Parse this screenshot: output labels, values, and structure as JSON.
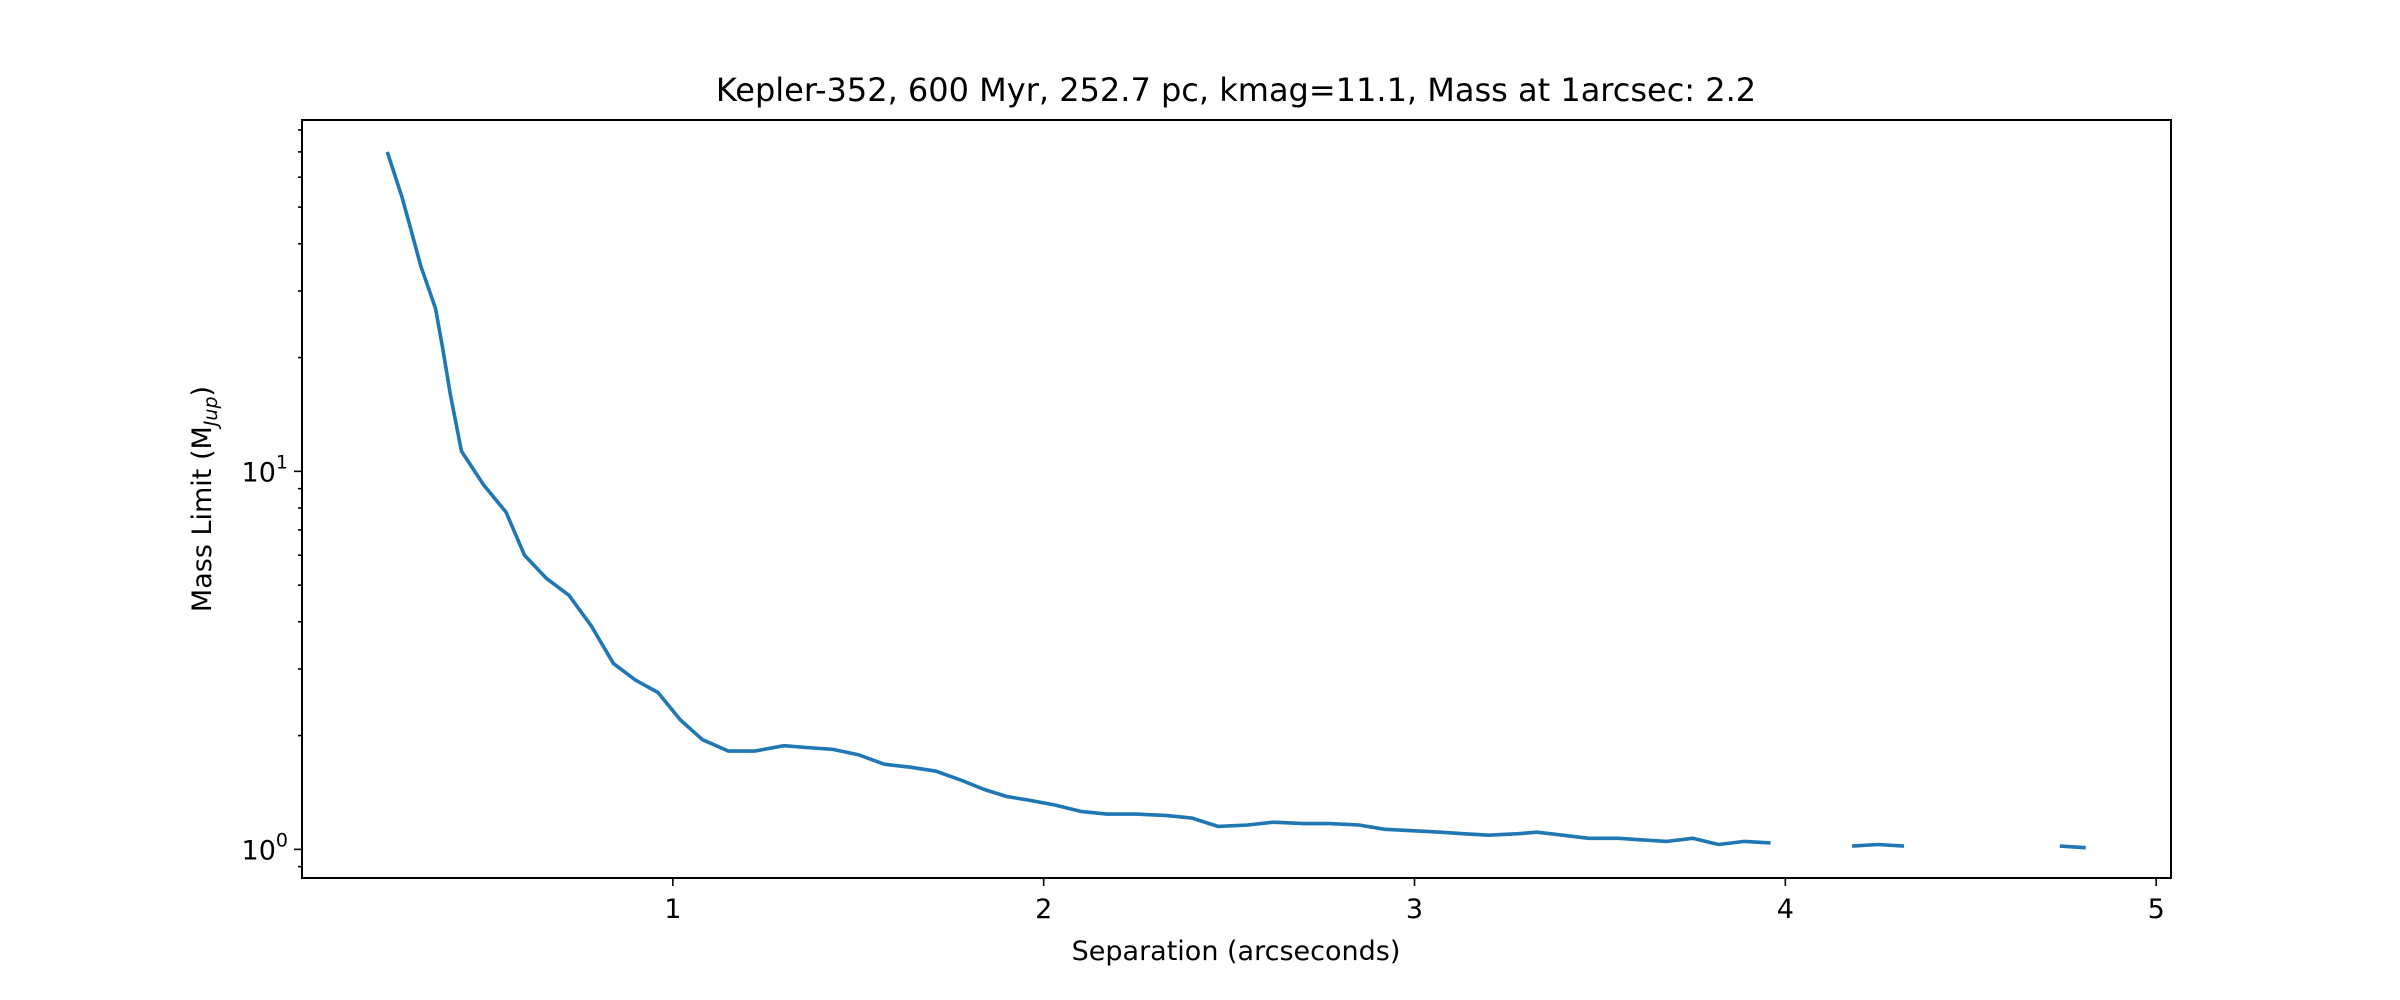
{
  "chart_data": {
    "type": "line",
    "title": "Kepler-352, 600 Myr, 252.7 pc, kmag=11.1, Mass at 1arcsec: 2.2",
    "xlabel": "Separation (arcseconds)",
    "ylabel": "Mass Limit (M",
    "ylabel_subscript": "Jup",
    "ylabel_suffix": ")",
    "xlim": [
      0.0,
      5.04
    ],
    "ylim": [
      0.84,
      85
    ],
    "yscale": "log",
    "grid": false,
    "legend": "none",
    "line_color": "#1f77b4",
    "x_ticks": [
      {
        "value": 1,
        "label": "1"
      },
      {
        "value": 2,
        "label": "2"
      },
      {
        "value": 3,
        "label": "3"
      },
      {
        "value": 4,
        "label": "4"
      },
      {
        "value": 5,
        "label": "5"
      }
    ],
    "y_ticks": [
      {
        "value": 1,
        "base": "10",
        "exp": "0"
      },
      {
        "value": 10,
        "base": "10",
        "exp": "1"
      }
    ],
    "series": [
      {
        "x": [
          0.23,
          0.27,
          0.29,
          0.32,
          0.36,
          0.38,
          0.4,
          0.43,
          0.49,
          0.55,
          0.6,
          0.66,
          0.72,
          0.78,
          0.84,
          0.9,
          0.96,
          1.02,
          1.08,
          1.15,
          1.22,
          1.3,
          1.36,
          1.43,
          1.5,
          1.57,
          1.64,
          1.71,
          1.78,
          1.84,
          1.9,
          1.96,
          2.03,
          2.1,
          2.17,
          2.25,
          2.33,
          2.4,
          2.47,
          2.55,
          2.62,
          2.7,
          2.77,
          2.85,
          2.92,
          3.0,
          3.07,
          3.13,
          3.2,
          3.28,
          3.33,
          3.4,
          3.47,
          3.55,
          3.61,
          3.68,
          3.75,
          3.82,
          3.89,
          3.96,
          null,
          4.18,
          4.25,
          4.32,
          null,
          4.74,
          4.81
        ],
        "y": [
          70,
          53,
          45,
          35,
          27,
          21,
          16,
          11.3,
          9.2,
          7.8,
          6.0,
          5.2,
          4.7,
          3.9,
          3.1,
          2.8,
          2.6,
          2.2,
          1.95,
          1.82,
          1.82,
          1.88,
          1.86,
          1.84,
          1.78,
          1.68,
          1.65,
          1.61,
          1.52,
          1.44,
          1.38,
          1.35,
          1.31,
          1.26,
          1.24,
          1.24,
          1.23,
          1.21,
          1.15,
          1.16,
          1.18,
          1.17,
          1.17,
          1.16,
          1.13,
          1.12,
          1.11,
          1.1,
          1.09,
          1.1,
          1.11,
          1.09,
          1.07,
          1.07,
          1.06,
          1.05,
          1.07,
          1.03,
          1.05,
          1.04,
          null,
          1.02,
          1.03,
          1.02,
          null,
          1.02,
          1.01
        ]
      }
    ]
  }
}
